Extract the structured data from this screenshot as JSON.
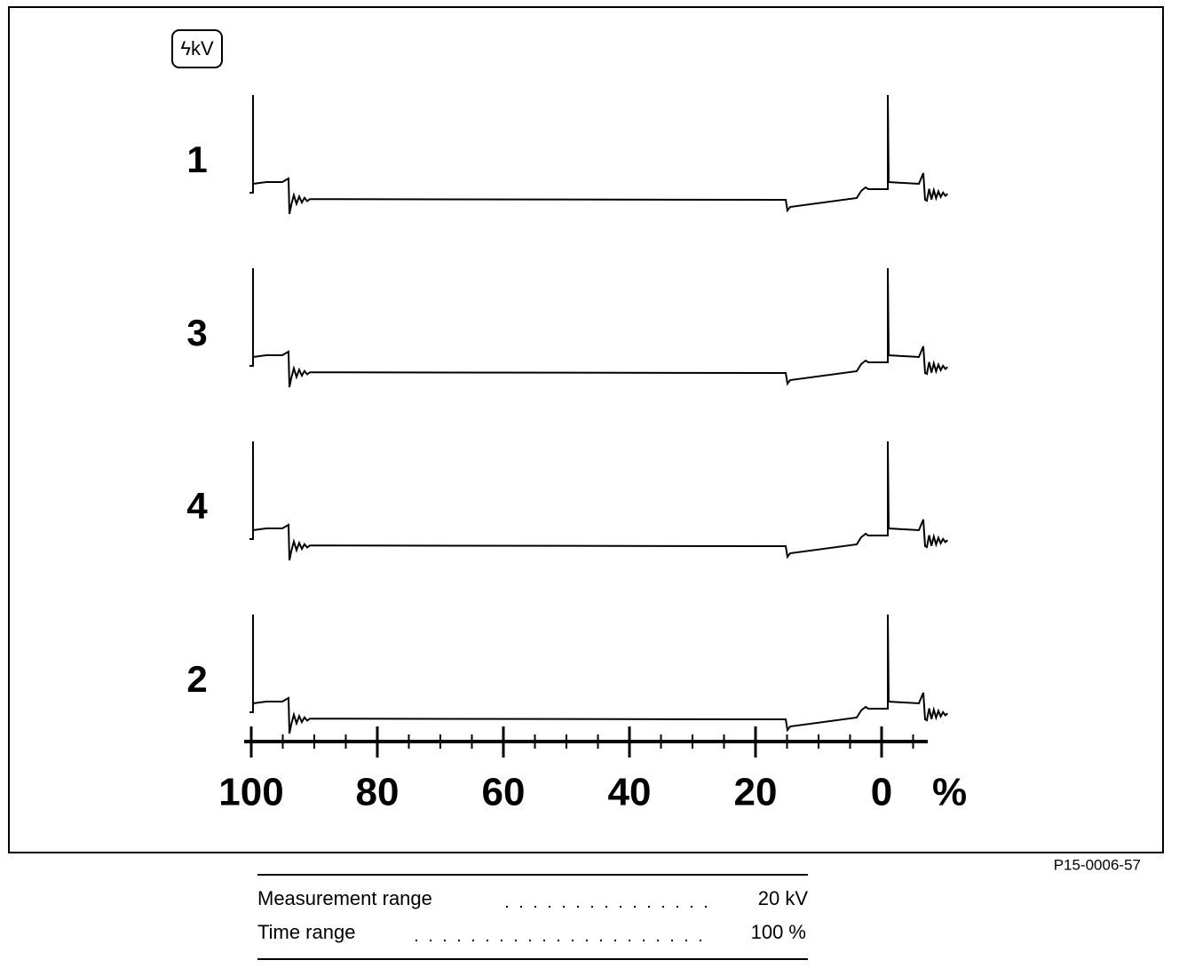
{
  "figure": {
    "icon": "ϟkV",
    "traces": [
      "1",
      "3",
      "4",
      "2"
    ],
    "axis": {
      "ticks": [
        100,
        80,
        60,
        40,
        20,
        0
      ],
      "unit": "%"
    },
    "figure_id": "P15-0006-57",
    "table": {
      "rows": [
        [
          "Measurement range",
          "20 kV"
        ],
        [
          "Time range",
          "100 %"
        ]
      ]
    }
  }
}
